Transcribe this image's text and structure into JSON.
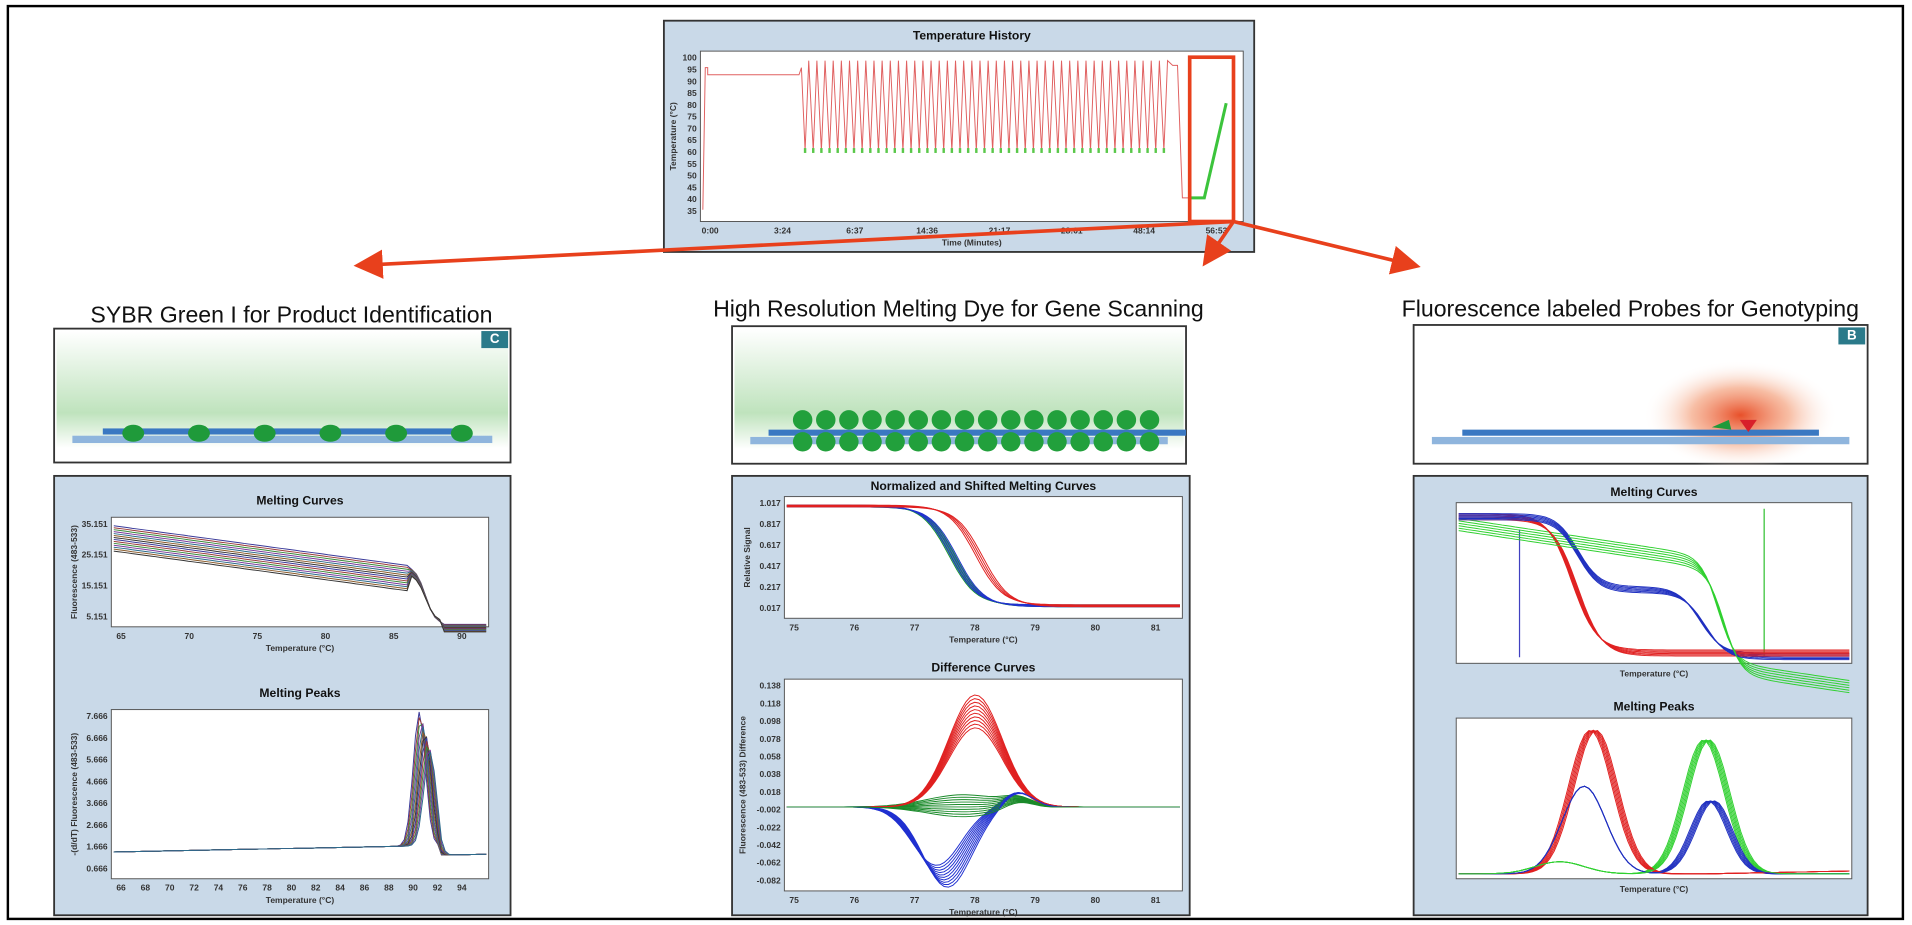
{
  "top_panel": {
    "title": "Temperature History",
    "y_axis_label": "Temperature (°C)",
    "x_axis_label": "Time (Minutes)",
    "y_ticks": [
      100,
      95,
      90,
      85,
      80,
      75,
      70,
      65,
      60,
      55,
      50,
      45,
      40,
      35
    ],
    "x_ticks": [
      "0:00",
      "3:24",
      "6:37",
      "14:36",
      "21:17",
      "28:01",
      "48:14",
      "56:53"
    ]
  },
  "columns": [
    {
      "heading": "SYBR Green I for Product Identification",
      "badge": "C",
      "charts": [
        {
          "title": "Melting Curves",
          "y_axis_label": "Fluorescence (483-533)",
          "x_axis_label": "Temperature (°C)",
          "y_ticks": [
            35.151,
            25.151,
            15.151,
            5.151
          ],
          "x_ticks": [
            65,
            70,
            75,
            80,
            85,
            90
          ]
        },
        {
          "title": "Melting Peaks",
          "y_axis_label": "-(d/dT) Fluorescence (483-533)",
          "x_axis_label": "Temperature (°C)",
          "y_ticks": [
            7.666,
            6.666,
            5.666,
            4.666,
            3.666,
            2.666,
            1.666,
            0.666
          ],
          "x_ticks": [
            66,
            68,
            70,
            72,
            74,
            76,
            78,
            80,
            82,
            84,
            86,
            88,
            90,
            92,
            94
          ]
        }
      ]
    },
    {
      "heading": "High Resolution Melting Dye for Gene Scanning",
      "charts": [
        {
          "title": "Normalized and Shifted Melting Curves",
          "y_axis_label": "Relative Signal",
          "x_axis_label": "Temperature (°C)",
          "y_ticks": [
            1.017,
            0.817,
            0.617,
            0.417,
            0.217,
            0.017
          ],
          "x_ticks": [
            75,
            76,
            77,
            78,
            79,
            80,
            81
          ]
        },
        {
          "title": "Difference Curves",
          "y_axis_label": "Fluorescence (483-533) Difference",
          "x_axis_label": "Temperature (°C)",
          "y_ticks": [
            0.138,
            0.118,
            0.098,
            0.078,
            0.058,
            0.038,
            0.018,
            -0.002,
            -0.022,
            -0.042,
            -0.062,
            -0.082
          ],
          "x_ticks": [
            75,
            76,
            77,
            78,
            79,
            80,
            81
          ]
        }
      ]
    },
    {
      "heading": "Fluorescence labeled Probes for Genotyping",
      "badge": "B",
      "charts": [
        {
          "title": "Melting Curves",
          "x_axis_label": "Temperature (°C)"
        },
        {
          "title": "Melting Peaks",
          "x_axis_label": "Temperature (°C)"
        }
      ]
    }
  ]
}
